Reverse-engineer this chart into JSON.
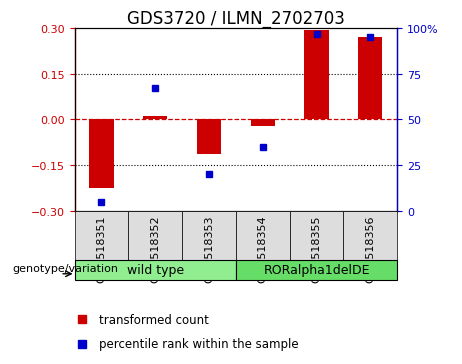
{
  "title": "GDS3720 / ILMN_2702703",
  "samples": [
    "GSM518351",
    "GSM518352",
    "GSM518353",
    "GSM518354",
    "GSM518355",
    "GSM518356"
  ],
  "bar_values": [
    -0.225,
    0.01,
    -0.115,
    -0.02,
    0.295,
    0.27
  ],
  "scatter_values": [
    5,
    67,
    20,
    35,
    97,
    95
  ],
  "ylim_left": [
    -0.3,
    0.3
  ],
  "ylim_right": [
    0,
    100
  ],
  "yticks_left": [
    -0.3,
    -0.15,
    0,
    0.15,
    0.3
  ],
  "yticks_right": [
    0,
    25,
    50,
    75,
    100
  ],
  "bar_color": "#CC0000",
  "scatter_color": "#0000CC",
  "zero_line_color": "#CC0000",
  "grid_color": "black",
  "group_wt_indices": [
    0,
    1,
    2
  ],
  "group_wt_label": "wild type",
  "group_wt_color": "#90EE90",
  "group_mut_indices": [
    3,
    4,
    5
  ],
  "group_mut_label": "RORalpha1delDE",
  "group_mut_color": "#66DD66",
  "group_label_text": "genotype/variation",
  "legend_bar": "transformed count",
  "legend_scatter": "percentile rank within the sample",
  "title_fontsize": 12,
  "tick_fontsize": 8,
  "label_fontsize": 9,
  "xtick_cell_color": "#DDDDDD"
}
